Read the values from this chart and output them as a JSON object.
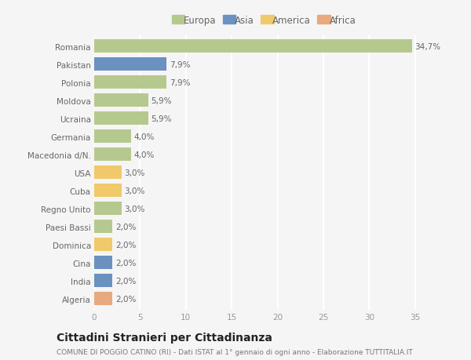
{
  "countries": [
    "Romania",
    "Pakistan",
    "Polonia",
    "Moldova",
    "Ucraina",
    "Germania",
    "Macedonia d/N.",
    "USA",
    "Cuba",
    "Regno Unito",
    "Paesi Bassi",
    "Dominica",
    "Cina",
    "India",
    "Algeria"
  ],
  "values": [
    34.7,
    7.9,
    7.9,
    5.9,
    5.9,
    4.0,
    4.0,
    3.0,
    3.0,
    3.0,
    2.0,
    2.0,
    2.0,
    2.0,
    2.0
  ],
  "labels": [
    "34,7%",
    "7,9%",
    "7,9%",
    "5,9%",
    "5,9%",
    "4,0%",
    "4,0%",
    "3,0%",
    "3,0%",
    "3,0%",
    "2,0%",
    "2,0%",
    "2,0%",
    "2,0%",
    "2,0%"
  ],
  "continents": [
    "Europa",
    "Asia",
    "Europa",
    "Europa",
    "Europa",
    "Europa",
    "Europa",
    "America",
    "America",
    "Europa",
    "Europa",
    "America",
    "Asia",
    "Asia",
    "Africa"
  ],
  "continent_colors": {
    "Europa": "#b5c98e",
    "Asia": "#6b91c1",
    "America": "#f0c96b",
    "Africa": "#e8a97e"
  },
  "legend_order": [
    "Europa",
    "Asia",
    "America",
    "Africa"
  ],
  "xlim": [
    0,
    37
  ],
  "xticks": [
    0,
    5,
    10,
    15,
    20,
    25,
    30,
    35
  ],
  "title": "Cittadini Stranieri per Cittadinanza",
  "subtitle": "COMUNE DI POGGIO CATINO (RI) - Dati ISTAT al 1° gennaio di ogni anno - Elaborazione TUTTITALIA.IT",
  "bg_color": "#f5f5f5",
  "grid_color": "#ffffff",
  "bar_height": 0.75,
  "label_fontsize": 7.5,
  "tick_fontsize": 7.5,
  "title_fontsize": 10,
  "subtitle_fontsize": 6.5
}
